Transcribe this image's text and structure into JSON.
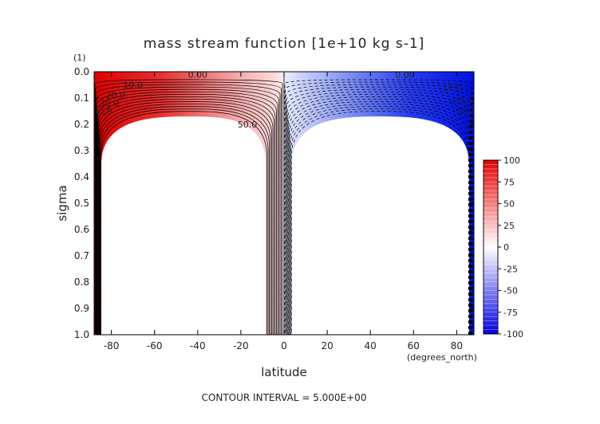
{
  "chart_data": {
    "type": "heatmap",
    "title": "mass stream function [1e+10 kg s-1]",
    "xlabel": "latitude",
    "ylabel": "sigma",
    "x_units": "(degrees_north)",
    "y_units": "(1)",
    "xlim": [
      -88,
      88
    ],
    "ylim": [
      0.0,
      1.0
    ],
    "y_inverted": true,
    "x_ticks": [
      "-80",
      "-60",
      "-40",
      "-20",
      "0",
      "20",
      "40",
      "60",
      "80"
    ],
    "y_ticks": [
      "0.0",
      "0.1",
      "0.2",
      "0.3",
      "0.4",
      "0.5",
      "0.6",
      "0.7",
      "0.8",
      "0.9",
      "1.0"
    ],
    "colorbar": {
      "range": [
        -100,
        100
      ],
      "ticks": [
        "100",
        "75",
        "50",
        "25",
        "0",
        "-25",
        "-50",
        "-75",
        "-100"
      ],
      "positive_color": "#ee1111",
      "negative_color": "#1122ee",
      "zero_color": "#ffffff"
    },
    "cells": [
      {
        "name": "southern-hemisphere-cell",
        "sign": "positive",
        "lat_range": [
          -88,
          0
        ],
        "approx_max": 100
      },
      {
        "name": "northern-hemisphere-cell",
        "sign": "negative",
        "lat_range": [
          0,
          88
        ],
        "approx_min": -100
      }
    ],
    "contour_labels": [
      {
        "text": "0.00",
        "lat": -40,
        "sigma": 0.01
      },
      {
        "text": "10.0",
        "lat": -70,
        "sigma": 0.05
      },
      {
        "text": "20.0",
        "lat": -78,
        "sigma": 0.09
      },
      {
        "text": "30.0",
        "lat": -81,
        "sigma": 0.12
      },
      {
        "text": "40.0",
        "lat": -84,
        "sigma": 0.15
      },
      {
        "text": "50.0",
        "lat": -17,
        "sigma": 0.2
      },
      {
        "text": "0.00",
        "lat": 56,
        "sigma": 0.01
      },
      {
        "text": "10.0",
        "lat": 78,
        "sigma": 0.06
      },
      {
        "text": "-20.0",
        "lat": 82,
        "sigma": 0.11
      },
      {
        "text": "-30.0",
        "lat": 84,
        "sigma": 0.15
      }
    ],
    "grid": false,
    "legend": "right"
  },
  "footer": {
    "contour_interval": "CONTOUR INTERVAL = 5.000E+00"
  }
}
